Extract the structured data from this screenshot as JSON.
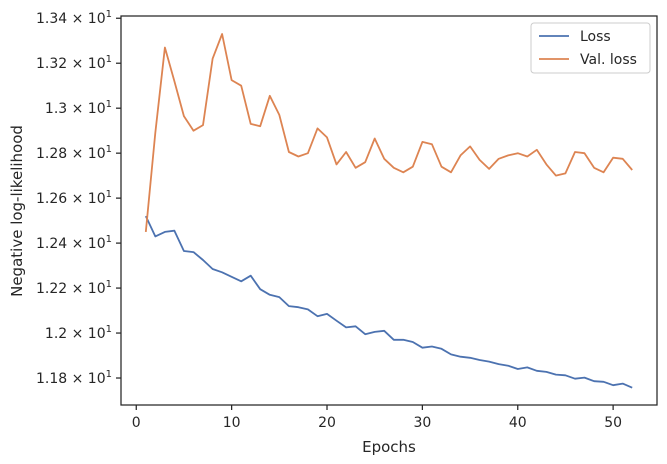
{
  "chart_data": {
    "type": "line",
    "title": "",
    "xlabel": "Epochs",
    "ylabel": "Negative log-likelihood",
    "xlim": [
      -1.6,
      54.6
    ],
    "ylim": [
      11.68,
      13.41
    ],
    "grid": false,
    "legend_position": "top-right",
    "x_ticks": [
      {
        "value": 0,
        "label": "0"
      },
      {
        "value": 10,
        "label": "10"
      },
      {
        "value": 20,
        "label": "20"
      },
      {
        "value": 30,
        "label": "30"
      },
      {
        "value": 40,
        "label": "40"
      },
      {
        "value": 50,
        "label": "50"
      }
    ],
    "y_ticks": [
      {
        "value": 11.8,
        "mantissa": "1.18",
        "base": "10",
        "exp": "1"
      },
      {
        "value": 12.0,
        "mantissa": "1.2",
        "base": "10",
        "exp": "1"
      },
      {
        "value": 12.2,
        "mantissa": "1.22",
        "base": "10",
        "exp": "1"
      },
      {
        "value": 12.4,
        "mantissa": "1.24",
        "base": "10",
        "exp": "1"
      },
      {
        "value": 12.6,
        "mantissa": "1.26",
        "base": "10",
        "exp": "1"
      },
      {
        "value": 12.8,
        "mantissa": "1.28",
        "base": "10",
        "exp": "1"
      },
      {
        "value": 13.0,
        "mantissa": "1.3",
        "base": "10",
        "exp": "1"
      },
      {
        "value": 13.2,
        "mantissa": "1.32",
        "base": "10",
        "exp": "1"
      },
      {
        "value": 13.4,
        "mantissa": "1.34",
        "base": "10",
        "exp": "1"
      }
    ],
    "series": [
      {
        "name": "Loss",
        "color": "#4c72b0",
        "x": [
          1,
          2,
          3,
          4,
          5,
          6,
          7,
          8,
          9,
          10,
          11,
          12,
          13,
          14,
          15,
          16,
          17,
          18,
          19,
          20,
          21,
          22,
          23,
          24,
          25,
          26,
          27,
          28,
          29,
          30,
          31,
          32,
          33,
          34,
          35,
          36,
          37,
          38,
          39,
          40,
          41,
          42,
          43,
          44,
          45,
          46,
          47,
          48,
          49,
          50,
          51,
          52
        ],
        "values": [
          12.52,
          12.43,
          12.45,
          12.455,
          12.365,
          12.36,
          12.325,
          12.285,
          12.27,
          12.25,
          12.23,
          12.255,
          12.195,
          12.17,
          12.16,
          12.12,
          12.115,
          12.105,
          12.075,
          12.085,
          12.055,
          12.025,
          12.03,
          11.995,
          12.005,
          12.01,
          11.97,
          11.97,
          11.96,
          11.935,
          11.94,
          11.93,
          11.905,
          11.895,
          11.89,
          11.88,
          11.873,
          11.862,
          11.855,
          11.84,
          11.847,
          11.832,
          11.827,
          11.815,
          11.812,
          11.797,
          11.802,
          11.786,
          11.783,
          11.768,
          11.775,
          11.757
        ]
      },
      {
        "name": "Val. loss",
        "color": "#dd8452",
        "x": [
          1,
          2,
          3,
          4,
          5,
          6,
          7,
          8,
          9,
          10,
          11,
          12,
          13,
          14,
          15,
          16,
          17,
          18,
          19,
          20,
          21,
          22,
          23,
          24,
          25,
          26,
          27,
          28,
          29,
          30,
          31,
          32,
          33,
          34,
          35,
          36,
          37,
          38,
          39,
          40,
          41,
          42,
          43,
          44,
          45,
          46,
          47,
          48,
          49,
          50,
          51,
          52
        ],
        "values": [
          12.45,
          12.89,
          13.27,
          13.12,
          12.965,
          12.9,
          12.925,
          13.22,
          13.33,
          13.125,
          13.1,
          12.93,
          12.92,
          13.055,
          12.97,
          12.805,
          12.785,
          12.8,
          12.91,
          12.87,
          12.75,
          12.805,
          12.735,
          12.76,
          12.865,
          12.775,
          12.735,
          12.715,
          12.74,
          12.85,
          12.84,
          12.74,
          12.715,
          12.79,
          12.83,
          12.77,
          12.73,
          12.775,
          12.79,
          12.8,
          12.785,
          12.815,
          12.75,
          12.7,
          12.71,
          12.805,
          12.8,
          12.735,
          12.715,
          12.78,
          12.775,
          12.725
        ]
      }
    ]
  }
}
